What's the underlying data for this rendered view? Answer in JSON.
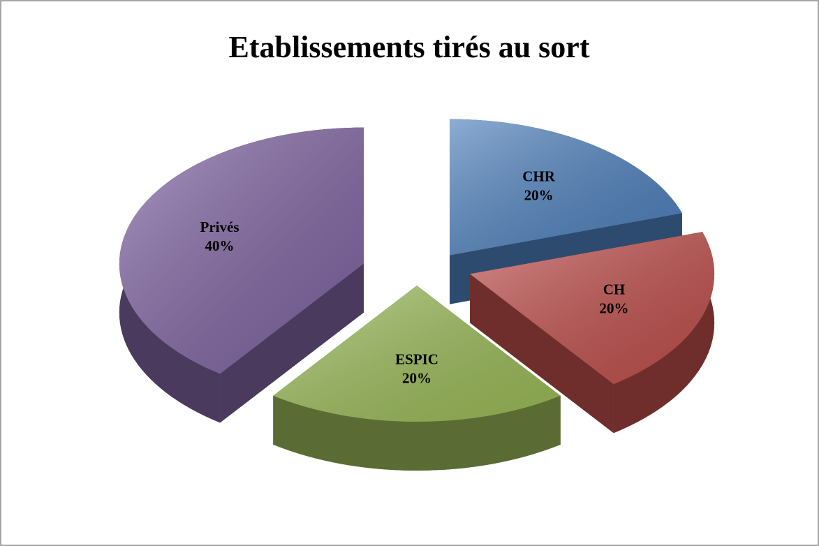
{
  "chart_data": {
    "type": "pie",
    "title": "Etablissements tirés au sort",
    "categories": [
      "CHR",
      "CH",
      "ESPIC",
      "Privés"
    ],
    "values": [
      20,
      20,
      20,
      40
    ],
    "value_labels": [
      "20%",
      "20%",
      "20%",
      "40%"
    ],
    "colors": [
      "#4f81bd",
      "#c0504d",
      "#9bbb59",
      "#8064a2"
    ]
  }
}
